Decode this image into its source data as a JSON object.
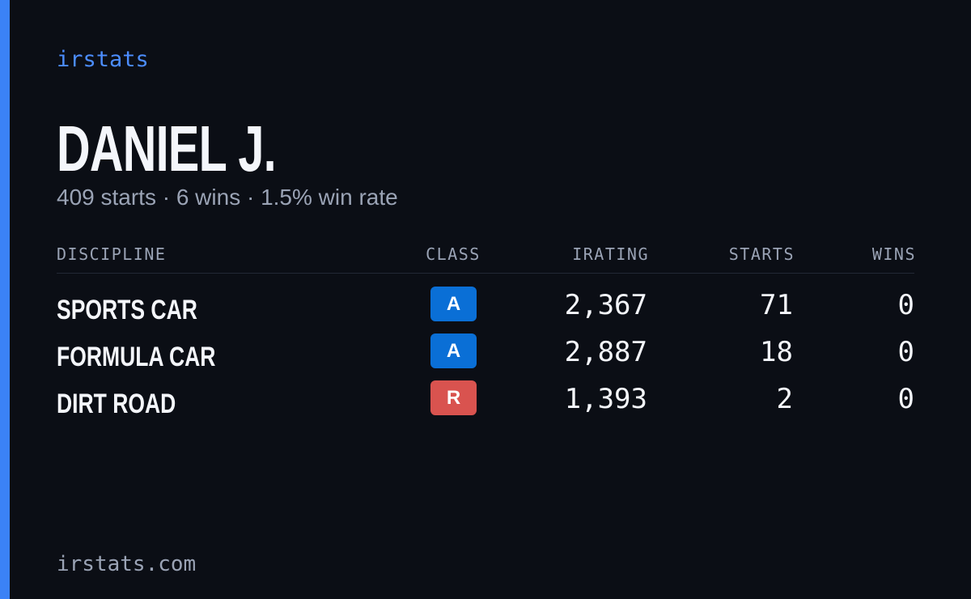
{
  "brand": "irstats",
  "driver": {
    "name": "DANIEL J.",
    "summary": "409 starts · 6 wins · 1.5% win rate"
  },
  "table": {
    "headers": [
      "DISCIPLINE",
      "CLASS",
      "IRATING",
      "STARTS",
      "WINS"
    ],
    "rows": [
      [
        "SPORTS CAR",
        "A",
        "2,367",
        "71",
        "0"
      ],
      [
        "FORMULA CAR",
        "A",
        "2,887",
        "18",
        "0"
      ],
      [
        "DIRT ROAD",
        "R",
        "1,393",
        "2",
        "0"
      ]
    ]
  },
  "footer": "irstats.com"
}
